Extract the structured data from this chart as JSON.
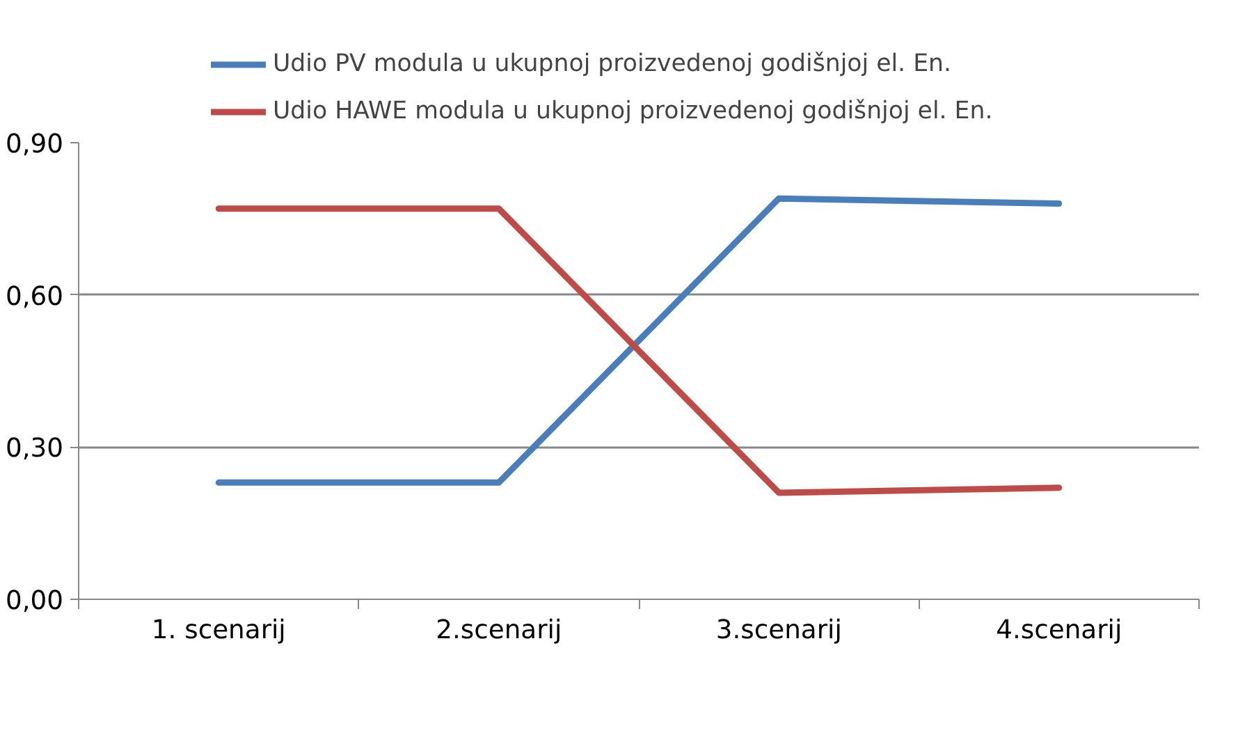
{
  "chart_data": {
    "type": "line",
    "categories": [
      "1. scenarij",
      "2.scenarij",
      "3.scenarij",
      "4.scenarij"
    ],
    "series": [
      {
        "name": "Udio PV modula u ukupnoj proizvedenoj godišnjoj el. En.",
        "color": "#4a7ebb",
        "values": [
          0.23,
          0.23,
          0.79,
          0.78
        ]
      },
      {
        "name": "Udio HAWE modula u ukupnoj proizvedenoj godišnjoj el. En.",
        "color": "#be4b48",
        "values": [
          0.77,
          0.77,
          0.21,
          0.22
        ]
      }
    ],
    "ylim": [
      0,
      0.9
    ],
    "yticks": [
      {
        "value": 0,
        "label": "0,00"
      },
      {
        "value": 0.3,
        "label": "0,30"
      },
      {
        "value": 0.6,
        "label": "0,60"
      },
      {
        "value": 0.9,
        "label": "0,90"
      }
    ],
    "grid": "y",
    "legend": "top",
    "marker": "none",
    "line_style": "solid"
  }
}
